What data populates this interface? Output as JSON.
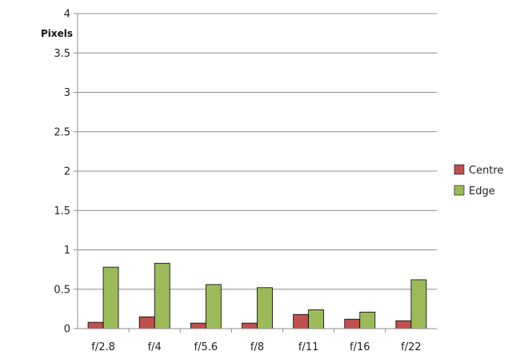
{
  "chart_data": {
    "type": "bar",
    "ylabel": "Pixels",
    "xlabel": "",
    "ylim": [
      0,
      4
    ],
    "yticks": [
      "0",
      "0.5",
      "1",
      "1.5",
      "2",
      "2.5",
      "3",
      "3.5",
      "4"
    ],
    "categories": [
      "f/2.8",
      "f/4",
      "f/5.6",
      "f/8",
      "f/11",
      "f/16",
      "f/22"
    ],
    "series": [
      {
        "name": "Centre",
        "color": "#c0504d",
        "values": [
          0.08,
          0.15,
          0.07,
          0.07,
          0.18,
          0.12,
          0.1
        ]
      },
      {
        "name": "Edge",
        "color": "#9bbb59",
        "values": [
          0.78,
          0.83,
          0.56,
          0.52,
          0.24,
          0.21,
          0.62
        ]
      }
    ],
    "grid": true,
    "legend": "right"
  }
}
